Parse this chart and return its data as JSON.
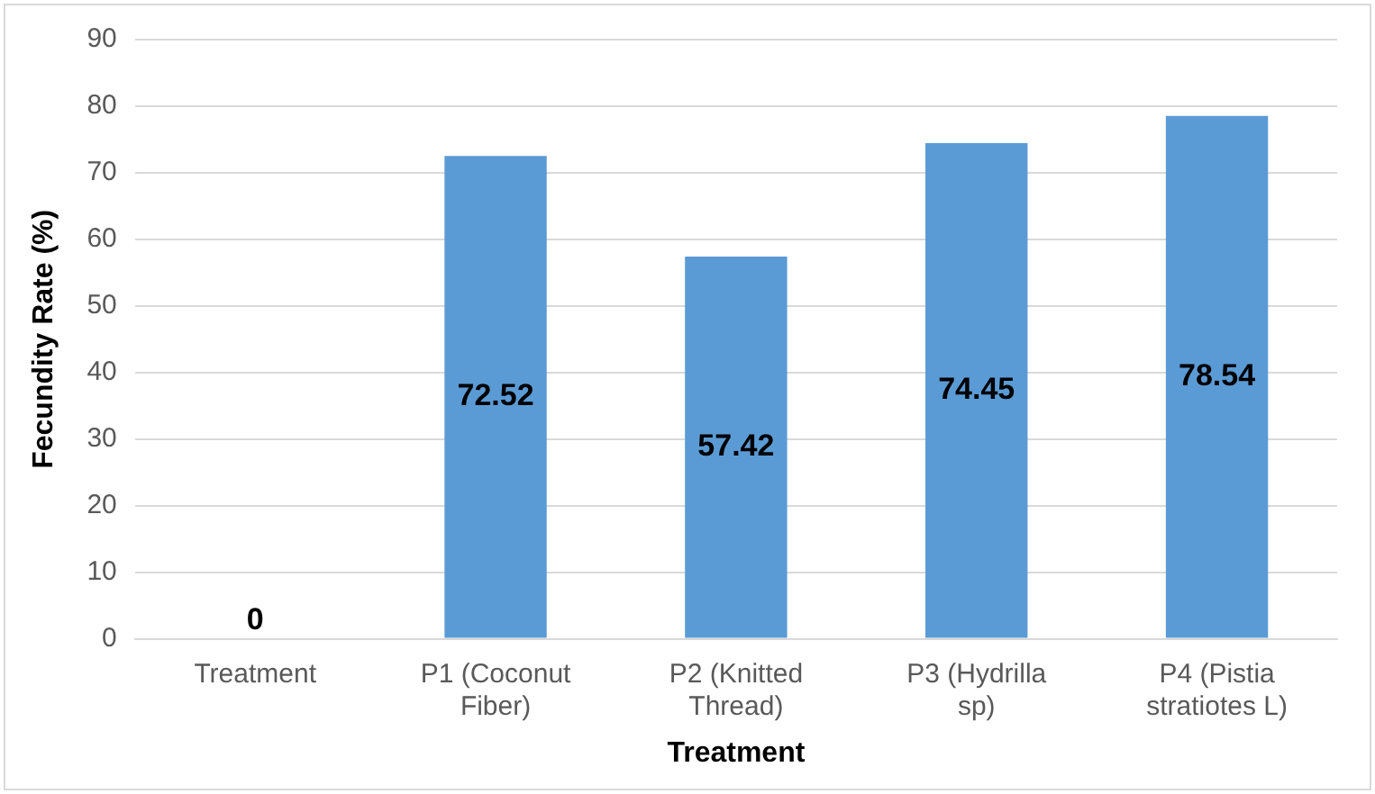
{
  "chart_data": {
    "type": "bar",
    "xlabel": "Treatment",
    "ylabel": "Fecundity Rate (%)",
    "categories": [
      "Treatment",
      "P1 (Coconut Fiber)",
      "P2 (Knitted Thread)",
      "P3 (Hydrilla sp)",
      "P4 (Pistia stratiotes L)"
    ],
    "values": [
      0,
      72.52,
      57.42,
      74.45,
      78.54
    ],
    "color": "#5b9bd5",
    "ylim": [
      0,
      90
    ],
    "yticks": [
      0,
      10,
      20,
      30,
      40,
      50,
      60,
      70,
      80,
      90
    ],
    "grid": "y",
    "data_labels": true
  }
}
